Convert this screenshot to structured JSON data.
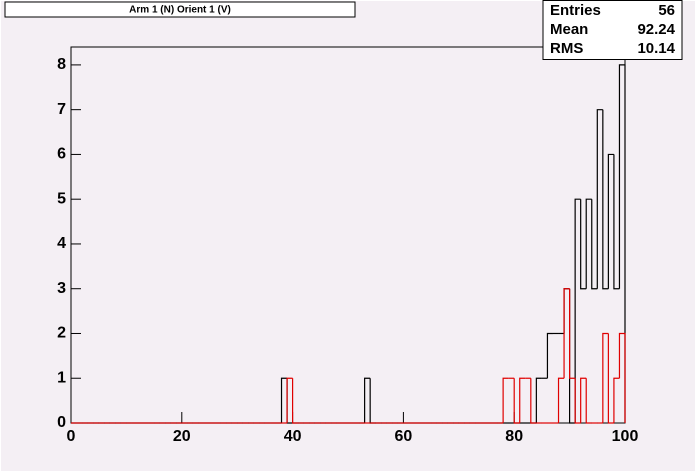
{
  "chart_data": {
    "type": "histogram",
    "title": "Arm 1 (N) Orient 1 (V)",
    "stats": {
      "labels": [
        "Entries",
        "Mean",
        "RMS"
      ],
      "values": [
        56,
        92.24,
        10.14
      ]
    },
    "bins": [
      0,
      1,
      2,
      3,
      4,
      5,
      6,
      7,
      8,
      9,
      10,
      11,
      12,
      13,
      14,
      15,
      16,
      17,
      18,
      19,
      20,
      21,
      22,
      23,
      24,
      25,
      26,
      27,
      28,
      29,
      30,
      31,
      32,
      33,
      34,
      35,
      36,
      37,
      38,
      39,
      40,
      41,
      42,
      43,
      44,
      45,
      46,
      47,
      48,
      49,
      50,
      51,
      52,
      53,
      54,
      55,
      56,
      57,
      58,
      59,
      60,
      61,
      62,
      63,
      64,
      65,
      66,
      67,
      68,
      69,
      70,
      71,
      72,
      73,
      74,
      75,
      76,
      77,
      78,
      79,
      80,
      81,
      82,
      83,
      84,
      85,
      86,
      87,
      88,
      89,
      90,
      91,
      92,
      93,
      94,
      95,
      96,
      97,
      98,
      99,
      100
    ],
    "series": [
      {
        "color": "#000000",
        "values": [
          0,
          0,
          0,
          0,
          0,
          0,
          0,
          0,
          0,
          0,
          0,
          0,
          0,
          0,
          0,
          0,
          0,
          0,
          0,
          0,
          0,
          0,
          0,
          0,
          0,
          0,
          0,
          0,
          0,
          0,
          0,
          0,
          0,
          0,
          0,
          0,
          0,
          0,
          1,
          0,
          0,
          0,
          0,
          0,
          0,
          0,
          0,
          0,
          0,
          0,
          0,
          0,
          0,
          1,
          0,
          0,
          0,
          0,
          0,
          0,
          0,
          0,
          0,
          0,
          0,
          0,
          0,
          0,
          0,
          0,
          0,
          0,
          0,
          0,
          0,
          0,
          0,
          0,
          0,
          0,
          0,
          0,
          0,
          0,
          1,
          1,
          2,
          2,
          2,
          3,
          0,
          5,
          3,
          5,
          3,
          7,
          3,
          6,
          3,
          8
        ]
      },
      {
        "color": "#e00000",
        "values": [
          0,
          0,
          0,
          0,
          0,
          0,
          0,
          0,
          0,
          0,
          0,
          0,
          0,
          0,
          0,
          0,
          0,
          0,
          0,
          0,
          0,
          0,
          0,
          0,
          0,
          0,
          0,
          0,
          0,
          0,
          0,
          0,
          0,
          0,
          0,
          0,
          0,
          0,
          0,
          1,
          0,
          0,
          0,
          0,
          0,
          0,
          0,
          0,
          0,
          0,
          0,
          0,
          0,
          0,
          0,
          0,
          0,
          0,
          0,
          0,
          0,
          0,
          0,
          0,
          0,
          0,
          0,
          0,
          0,
          0,
          0,
          0,
          0,
          0,
          0,
          0,
          0,
          0,
          1,
          1,
          0,
          1,
          1,
          0,
          0,
          0,
          0,
          0,
          1,
          3,
          1,
          0,
          1,
          0,
          0,
          0,
          2,
          0,
          1,
          2
        ]
      }
    ],
    "xlim": [
      0,
      100
    ],
    "xticks": [
      0,
      20,
      40,
      60,
      80,
      100
    ],
    "ylim": [
      0,
      8.4
    ],
    "yticks": [
      0,
      1,
      2,
      3,
      4,
      5,
      6,
      7,
      8
    ]
  }
}
